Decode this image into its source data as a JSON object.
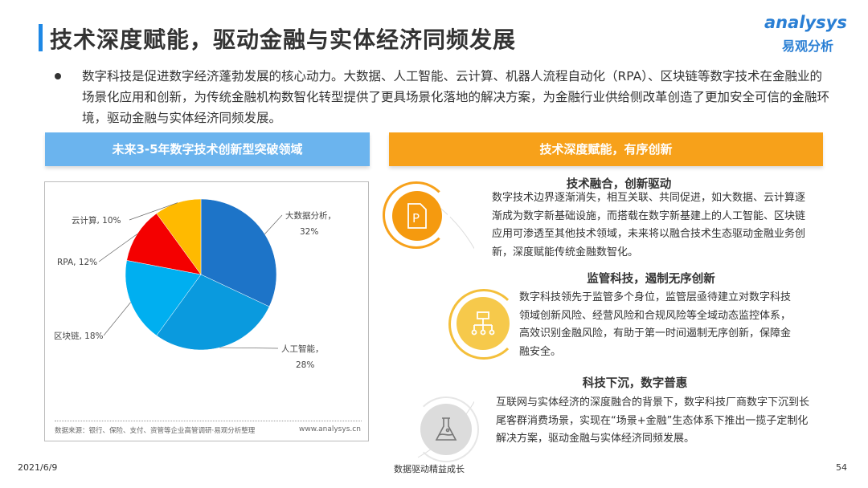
{
  "header": {
    "title": "技术深度赋能，驱动金融与实体经济同频发展",
    "logo_en": "analysys",
    "logo_cn": "易观分析"
  },
  "intro": "数字科技是促进数字经济蓬勃发展的核心动力。大数据、人工智能、云计算、机器人流程自动化（RPA）、区块链等数字技术在金融业的场景化应用和创新，为传统金融机构数智化转型提供了更具场景化落地的解决方案，为金融行业供给侧改革创造了更加安全可信的金融环境，驱动金融与实体经济同频发展。",
  "left_panel": {
    "heading": "未来3-5年数字技术创新型突破领域",
    "source": "数据来源：银行、保险、支付、资管等企业高管调研·易观分析整理",
    "site": "www.analysys.cn"
  },
  "chart_data": {
    "type": "pie",
    "start": "top",
    "direction": "clockwise",
    "categories": [
      "大数据分析",
      "人工智能",
      "区块链",
      "RPA",
      "云计算"
    ],
    "values": [
      32,
      28,
      18,
      12,
      10
    ],
    "labels": [
      "大数据分析，32%",
      "人工智能，28%",
      "区块链, 18%",
      "RPA, 12%",
      "云计算, 10%"
    ],
    "colors": [
      "#1d74c8",
      "#0a9ade",
      "#00aff0",
      "#f40000",
      "#ffba00"
    ]
  },
  "right_panel": {
    "heading": "技术深度赋能，有序创新",
    "sections": [
      {
        "title": "技术融合，创新驱动",
        "icon": "document-p-icon",
        "body": "数字技术边界逐渐消失，相互关联、共同促进，如大数据、云计算逐渐成为数字新基础设施，而搭载在数字新基建上的人工智能、区块链应用可渗透至其他技术领域，未来将以融合技术生态驱动金融业务创新，深度赋能传统金融数智化。"
      },
      {
        "title": "监管科技，遏制无序创新",
        "icon": "hierarchy-icon",
        "body": "数字科技领先于监管多个身位，监管层亟待建立对数字科技领域创新风险、经营风险和合规风险等全域动态监控体系，高效识别金融风险，有助于第一时间遏制无序创新，保障金融安全。"
      },
      {
        "title": "科技下沉，数字普惠",
        "icon": "flask-icon",
        "body": "互联网与实体经济的深度融合的背景下，数字科技厂商数字下沉到长尾客群消费场景，实现在“场景+金融”生态体系下推出一揽子定制化解决方案，驱动金融与实体经济同频发展。"
      }
    ]
  },
  "footer": {
    "date": "2021/6/9",
    "center": "数据驱动精益成长",
    "page": "54"
  }
}
